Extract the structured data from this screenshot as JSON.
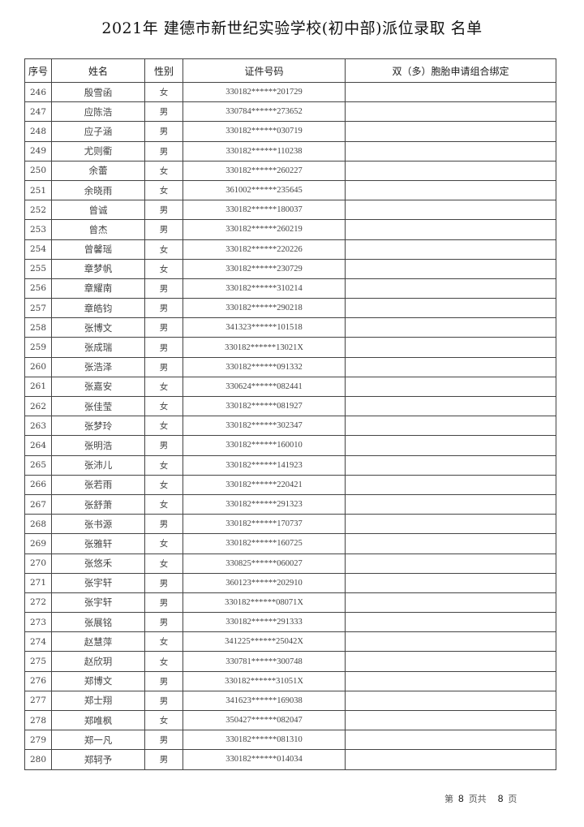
{
  "title": "2021年 建德市新世纪实验学校(初中部)派位录取 名单",
  "table": {
    "headers": [
      "序号",
      "姓名",
      "性别",
      "证件号码",
      "双（多）胞胎申请组合绑定"
    ],
    "rows": [
      [
        "246",
        "殷雪函",
        "女",
        "330182******201729",
        ""
      ],
      [
        "247",
        "应陈浩",
        "男",
        "330784******273652",
        ""
      ],
      [
        "248",
        "应子涵",
        "男",
        "330182******030719",
        ""
      ],
      [
        "249",
        "尤则衢",
        "男",
        "330182******110238",
        ""
      ],
      [
        "250",
        "余蕾",
        "女",
        "330182******260227",
        ""
      ],
      [
        "251",
        "余晓雨",
        "女",
        "361002******235645",
        ""
      ],
      [
        "252",
        "曾诚",
        "男",
        "330182******180037",
        ""
      ],
      [
        "253",
        "曾杰",
        "男",
        "330182******260219",
        ""
      ],
      [
        "254",
        "曾馨瑶",
        "女",
        "330182******220226",
        ""
      ],
      [
        "255",
        "章梦帆",
        "女",
        "330182******230729",
        ""
      ],
      [
        "256",
        "章耀南",
        "男",
        "330182******310214",
        ""
      ],
      [
        "257",
        "章皓钧",
        "男",
        "330182******290218",
        ""
      ],
      [
        "258",
        "张博文",
        "男",
        "341323******101518",
        ""
      ],
      [
        "259",
        "张成瑞",
        "男",
        "330182******13021X",
        ""
      ],
      [
        "260",
        "张浩泽",
        "男",
        "330182******091332",
        ""
      ],
      [
        "261",
        "张嘉安",
        "女",
        "330624******082441",
        ""
      ],
      [
        "262",
        "张佳莹",
        "女",
        "330182******081927",
        ""
      ],
      [
        "263",
        "张梦玲",
        "女",
        "330182******302347",
        ""
      ],
      [
        "264",
        "张明浩",
        "男",
        "330182******160010",
        ""
      ],
      [
        "265",
        "张沛儿",
        "女",
        "330182******141923",
        ""
      ],
      [
        "266",
        "张若雨",
        "女",
        "330182******220421",
        ""
      ],
      [
        "267",
        "张舒萧",
        "女",
        "330182******291323",
        ""
      ],
      [
        "268",
        "张书源",
        "男",
        "330182******170737",
        ""
      ],
      [
        "269",
        "张雅轩",
        "女",
        "330182******160725",
        ""
      ],
      [
        "270",
        "张悠禾",
        "女",
        "330825******060027",
        ""
      ],
      [
        "271",
        "张宇轩",
        "男",
        "360123******202910",
        ""
      ],
      [
        "272",
        "张宇轩",
        "男",
        "330182******08071X",
        ""
      ],
      [
        "273",
        "张展铭",
        "男",
        "330182******291333",
        ""
      ],
      [
        "274",
        "赵慧萍",
        "女",
        "341225******25042X",
        ""
      ],
      [
        "275",
        "赵欣玥",
        "女",
        "330781******300748",
        ""
      ],
      [
        "276",
        "郑博文",
        "男",
        "330182******31051X",
        ""
      ],
      [
        "277",
        "郑士翔",
        "男",
        "341623******169038",
        ""
      ],
      [
        "278",
        "郑唯枫",
        "女",
        "350427******082047",
        ""
      ],
      [
        "279",
        "郑一凡",
        "男",
        "330182******081310",
        ""
      ],
      [
        "280",
        "郑轲予",
        "男",
        "330182******014034",
        ""
      ]
    ]
  },
  "footer": {
    "prefix": "第",
    "current": "8",
    "middle": "页共",
    "total": "8",
    "suffix": "页"
  }
}
